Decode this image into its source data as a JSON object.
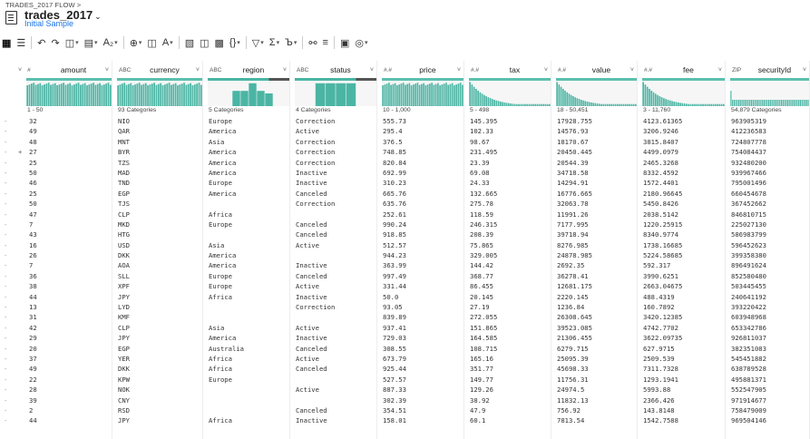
{
  "header": {
    "breadcrumb": "TRADES_2017 FLOW >",
    "title": "trades_2017",
    "sample": "Initial Sample"
  },
  "toolbar": {
    "items": [
      "grid-view",
      "list-view",
      "undo",
      "redo",
      "script-recipe",
      "filter-rows",
      "formula",
      "add-column",
      "merge",
      "text-format",
      "transform",
      "split",
      "braces",
      "filter",
      "sum",
      "clean",
      "join",
      "density",
      "comment",
      "settings"
    ]
  },
  "columns": [
    {
      "type": "#",
      "name": "amount",
      "summary": "1 - 50"
    },
    {
      "type": "ABC",
      "name": "currency",
      "summary": "93 Categories"
    },
    {
      "type": "ABC",
      "name": "region",
      "summary": "5 Categories"
    },
    {
      "type": "ABC",
      "name": "status",
      "summary": "4 Categories"
    },
    {
      "type": "#.#",
      "name": "price",
      "summary": "10 - 1,000"
    },
    {
      "type": "#.#",
      "name": "tax",
      "summary": "5 - 498"
    },
    {
      "type": "#.#",
      "name": "value",
      "summary": "18 - 50,451"
    },
    {
      "type": "#.#",
      "name": "fee",
      "summary": "3 - 11,760"
    },
    {
      "type": "ZIP",
      "name": "securityId",
      "summary": "54,879 Categories"
    }
  ],
  "rows": [
    [
      "32",
      "NIO",
      "Europe",
      "Correction",
      "555.73",
      "145.395",
      "17928.755",
      "4123.61365",
      "963905319"
    ],
    [
      "49",
      "QAR",
      "America",
      "Active",
      "295.4",
      "102.33",
      "14576.93",
      "3206.9246",
      "412236583"
    ],
    [
      "48",
      "MNT",
      "Asia",
      "Correction",
      "376.5",
      "98.67",
      "18170.67",
      "3815.8407",
      "724807778"
    ],
    [
      "27",
      "BYR",
      "America",
      "Correction",
      "748.85",
      "231.495",
      "20450.445",
      "4499.0979",
      "754084437"
    ],
    [
      "25",
      "TZS",
      "America",
      "Correction",
      "820.84",
      "23.39",
      "20544.39",
      "2465.3268",
      "932480200"
    ],
    [
      "50",
      "MAD",
      "America",
      "Inactive",
      "692.99",
      "69.08",
      "34718.58",
      "8332.4592",
      "939967466"
    ],
    [
      "46",
      "TND",
      "Europe",
      "Inactive",
      "310.23",
      "24.33",
      "14294.91",
      "1572.4401",
      "795001496"
    ],
    [
      "25",
      "EGP",
      "America",
      "Canceled",
      "665.76",
      "132.665",
      "16776.665",
      "2180.96645",
      "660454678"
    ],
    [
      "50",
      "TJS",
      "",
      "Correction",
      "635.76",
      "275.78",
      "32063.78",
      "5450.8426",
      "367452662"
    ],
    [
      "47",
      "CLP",
      "Africa",
      "",
      "252.61",
      "118.59",
      "11991.26",
      "2038.5142",
      "846810715"
    ],
    [
      "7",
      "MKD",
      "Europe",
      "Canceled",
      "990.24",
      "246.315",
      "7177.995",
      "1220.25915",
      "225027130"
    ],
    [
      "43",
      "HTG",
      "",
      "Canceled",
      "918.85",
      "208.39",
      "39718.94",
      "8340.9774",
      "586983799"
    ],
    [
      "16",
      "USD",
      "Asia",
      "Active",
      "512.57",
      "75.865",
      "8276.985",
      "1738.16685",
      "596452623"
    ],
    [
      "26",
      "DKK",
      "America",
      "",
      "944.23",
      "329.005",
      "24878.985",
      "5224.58685",
      "399358380"
    ],
    [
      "7",
      "AOA",
      "America",
      "Inactive",
      "363.99",
      "144.42",
      "2692.35",
      "592.317",
      "896491624"
    ],
    [
      "36",
      "SLL",
      "Europe",
      "Canceled",
      "997.49",
      "368.77",
      "36278.41",
      "3990.6251",
      "852580480"
    ],
    [
      "38",
      "XPF",
      "Europe",
      "Active",
      "331.44",
      "86.455",
      "12681.175",
      "2663.04675",
      "503445455"
    ],
    [
      "44",
      "JPY",
      "Africa",
      "Inactive",
      "50.0",
      "20.145",
      "2220.145",
      "488.4319",
      "240641192"
    ],
    [
      "13",
      "LYD",
      "",
      "Correction",
      "93.05",
      "27.19",
      "1236.84",
      "160.7892",
      "393220422"
    ],
    [
      "31",
      "KMF",
      "",
      "",
      "839.89",
      "272.055",
      "26308.645",
      "3420.12385",
      "603948968"
    ],
    [
      "42",
      "CLP",
      "Asia",
      "Active",
      "937.41",
      "151.865",
      "39523.085",
      "4742.7702",
      "653342786"
    ],
    [
      "29",
      "JPY",
      "America",
      "Inactive",
      "729.03",
      "164.585",
      "21306.455",
      "3622.09735",
      "926811037"
    ],
    [
      "20",
      "EGP",
      "Australia",
      "Canceled",
      "308.55",
      "108.715",
      "6279.715",
      "627.9715",
      "382351083"
    ],
    [
      "37",
      "YER",
      "Africa",
      "Active",
      "673.79",
      "165.16",
      "25095.39",
      "2509.539",
      "545451882"
    ],
    [
      "49",
      "DKK",
      "Africa",
      "Canceled",
      "925.44",
      "351.77",
      "45698.33",
      "7311.7328",
      "638789528"
    ],
    [
      "22",
      "KPW",
      "Europe",
      "",
      "527.57",
      "149.77",
      "11756.31",
      "1293.1941",
      "495881371"
    ],
    [
      "28",
      "NOK",
      "",
      "Active",
      "887.33",
      "129.26",
      "24974.5",
      "5993.88",
      "552547905"
    ],
    [
      "39",
      "CNY",
      "",
      "",
      "302.39",
      "38.92",
      "11832.13",
      "2366.426",
      "971914677"
    ],
    [
      "2",
      "RSD",
      "",
      "Canceled",
      "354.51",
      "47.9",
      "756.92",
      "143.8148",
      "758479009"
    ],
    [
      "44",
      "JPY",
      "Africa",
      "Inactive",
      "158.01",
      "60.1",
      "7813.54",
      "1542.7588",
      "969504146"
    ]
  ]
}
